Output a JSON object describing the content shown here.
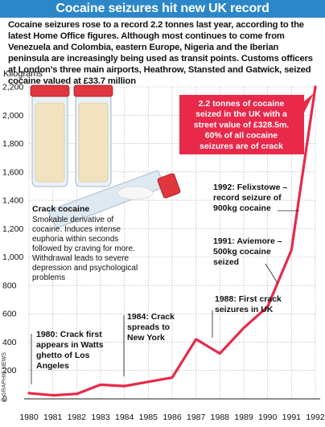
{
  "title": "Cocaine seizures hit new UK record",
  "intro": "Cocaine seizures rose to a record 2.2 tonnes last year, according to the latest Home Office figures. Although most continues to come from Venezuela and Colombia, eastern Europe, Nigeria and the Iberian peninsula are increasingly being used as transit points. Customs officers at London's three main airports, Heathrow, Stansted and Gatwick, seized cocaine valued at £33.7 million",
  "credit": "© GRAPHIC NEWS",
  "colors": {
    "title_bg": "#2c87c8",
    "line": "#e8294a",
    "callout_bg": "#e8294a",
    "grid": "#aaaaaa"
  },
  "chart_data": {
    "type": "line",
    "ylabel": "Kilograms",
    "ylim": [
      0,
      2200
    ],
    "yticks": [
      "2,200",
      "2,000",
      "1,800",
      "1,600",
      "1,400",
      "1,200",
      "1,000",
      "800",
      "600",
      "400",
      "200",
      "0"
    ],
    "x": [
      "1980",
      "1981",
      "1982",
      "1983",
      "1984",
      "1985",
      "1986",
      "1987",
      "1988",
      "1989",
      "1990",
      "1991",
      "1992"
    ],
    "series": [
      {
        "values": [
          40,
          25,
          35,
          100,
          90,
          120,
          150,
          420,
          320,
          500,
          650,
          1050,
          2200
        ]
      }
    ],
    "grid": true,
    "annotations": [
      {
        "id": "a1980",
        "lines": [
          "1980: Crack first",
          "appears in Watts",
          "ghetto of Los",
          "Angeles"
        ]
      },
      {
        "id": "a1984",
        "lines": [
          "1984: Crack",
          "spreads to",
          "New York"
        ]
      },
      {
        "id": "a1988",
        "lines": [
          "1988: First crack",
          "seizures in UK"
        ]
      },
      {
        "id": "a1991",
        "lines": [
          "1991: Aviemore –",
          "500kg cocaine",
          "seized"
        ]
      },
      {
        "id": "a1992",
        "lines": [
          "1992: Felixstowe –",
          "record seizure of",
          "900kg cocaine"
        ]
      }
    ],
    "callout": [
      "2.2 tonnes of cocaine",
      "seized in the UK with a",
      "street value of £328.5m.",
      "60% of all cocaine",
      "seizures are of crack"
    ],
    "crack_box": {
      "heading": "Crack cocaine",
      "lines": [
        "Smokable derivative of",
        "cocaine. Induces intense",
        "euphoria within seconds",
        "followed by craving for more.",
        "Withdrawal leads to severe",
        "depression and psychological",
        "problems"
      ]
    }
  }
}
